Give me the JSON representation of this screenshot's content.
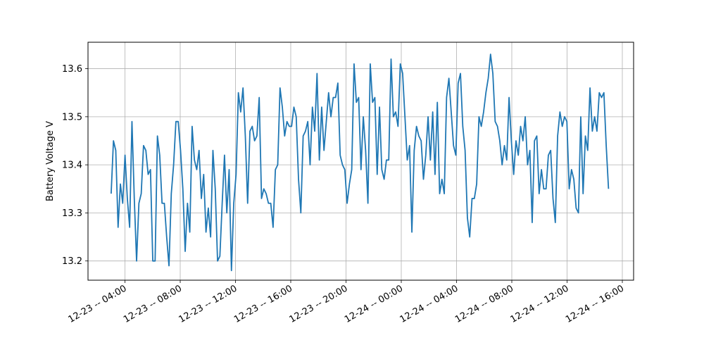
{
  "chart_data": {
    "type": "line",
    "title": "",
    "xlabel": "",
    "ylabel": "Battery Voltage V",
    "x_start": "12-23 -- 03:00",
    "x_end": "12-24 -- 15:00",
    "x_ticks": [
      "12-23 -- 04:00",
      "12-23 -- 08:00",
      "12-23 -- 12:00",
      "12-23 -- 16:00",
      "12-23 -- 20:00",
      "12-24 -- 00:00",
      "12-24 -- 04:00",
      "12-24 -- 08:00",
      "12-24 -- 12:00",
      "12-24 -- 16:00"
    ],
    "y_ticks": [
      "13.2",
      "13.3",
      "13.4",
      "13.5",
      "13.6"
    ],
    "ylim": [
      13.16,
      13.655
    ],
    "grid": true,
    "color": "#1f77b4",
    "series": [
      {
        "values": [
          13.34,
          13.45,
          13.43,
          13.27,
          13.36,
          13.32,
          13.42,
          13.33,
          13.27,
          13.49,
          13.33,
          13.2,
          13.32,
          13.34,
          13.44,
          13.43,
          13.38,
          13.39,
          13.2,
          13.2,
          13.46,
          13.42,
          13.32,
          13.32,
          13.25,
          13.19,
          13.34,
          13.4,
          13.49,
          13.49,
          13.43,
          13.35,
          13.22,
          13.32,
          13.26,
          13.48,
          13.41,
          13.39,
          13.43,
          13.33,
          13.38,
          13.26,
          13.31,
          13.25,
          13.43,
          13.35,
          13.2,
          13.21,
          13.32,
          13.42,
          13.3,
          13.39,
          13.18,
          13.32,
          13.38,
          13.55,
          13.51,
          13.56,
          13.46,
          13.32,
          13.47,
          13.48,
          13.45,
          13.46,
          13.54,
          13.33,
          13.35,
          13.34,
          13.32,
          13.32,
          13.27,
          13.39,
          13.4,
          13.56,
          13.52,
          13.46,
          13.49,
          13.48,
          13.48,
          13.52,
          13.5,
          13.37,
          13.3,
          13.46,
          13.47,
          13.49,
          13.4,
          13.52,
          13.47,
          13.59,
          13.41,
          13.52,
          13.43,
          13.49,
          13.55,
          13.5,
          13.54,
          13.54,
          13.57,
          13.42,
          13.4,
          13.39,
          13.32,
          13.36,
          13.39,
          13.61,
          13.53,
          13.54,
          13.39,
          13.5,
          13.43,
          13.32,
          13.61,
          13.53,
          13.54,
          13.38,
          13.52,
          13.39,
          13.37,
          13.41,
          13.41,
          13.62,
          13.5,
          13.51,
          13.48,
          13.61,
          13.59,
          13.5,
          13.41,
          13.44,
          13.26,
          13.43,
          13.48,
          13.46,
          13.45,
          13.37,
          13.42,
          13.5,
          13.41,
          13.51,
          13.38,
          13.53,
          13.34,
          13.37,
          13.34,
          13.54,
          13.58,
          13.51,
          13.44,
          13.42,
          13.57,
          13.59,
          13.48,
          13.43,
          13.29,
          13.25,
          13.33,
          13.33,
          13.36,
          13.5,
          13.48,
          13.51,
          13.55,
          13.58,
          13.63,
          13.59,
          13.49,
          13.48,
          13.45,
          13.4,
          13.44,
          13.41,
          13.54,
          13.45,
          13.38,
          13.45,
          13.42,
          13.48,
          13.45,
          13.5,
          13.4,
          13.43,
          13.28,
          13.45,
          13.46,
          13.34,
          13.39,
          13.35,
          13.35,
          13.42,
          13.43,
          13.33,
          13.28,
          13.46,
          13.51,
          13.48,
          13.5,
          13.49,
          13.35,
          13.39,
          13.37,
          13.31,
          13.3,
          13.5,
          13.34,
          13.46,
          13.43,
          13.56,
          13.47,
          13.5,
          13.47,
          13.55,
          13.54,
          13.55,
          13.44,
          13.35
        ]
      }
    ]
  }
}
